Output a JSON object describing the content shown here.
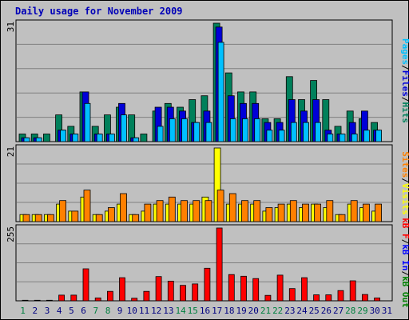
{
  "title": "Daily usage for November 2009",
  "colors": {
    "background": "#c0c0c0",
    "title": "#0000b8",
    "hits": "#00805b",
    "files": "#0000d8",
    "pages": "#00c0ff",
    "visits": "#ffff00",
    "sites": "#ff8000",
    "kb_in": "#0000ff",
    "kb_out": "#008000",
    "kb_f": "#ff0000",
    "weekend_day": "#008040",
    "weekday": "#000080"
  },
  "chart_data": [
    {
      "type": "bar",
      "title": "Daily usage for November 2009",
      "panel": "top",
      "ymax_label": "31",
      "ylim": [
        0,
        31
      ],
      "legend": [
        "Pages",
        "Files",
        "Hits"
      ],
      "legend_sep": "/",
      "categories": [
        "1",
        "2",
        "3",
        "4",
        "5",
        "6",
        "7",
        "8",
        "9",
        "10",
        "11",
        "12",
        "13",
        "14",
        "15",
        "16",
        "17",
        "18",
        "19",
        "20",
        "21",
        "22",
        "23",
        "24",
        "25",
        "26",
        "27",
        "28",
        "29",
        "30"
      ],
      "series": [
        {
          "name": "Hits",
          "values": [
            2,
            2,
            2,
            7,
            4,
            13,
            4,
            7,
            9,
            7,
            2,
            8,
            10,
            9,
            11,
            12,
            31,
            18,
            13,
            13,
            6,
            6,
            17,
            11,
            16,
            11,
            4,
            8,
            6,
            5
          ]
        },
        {
          "name": "Files",
          "values": [
            1,
            1,
            0,
            3,
            2,
            13,
            2,
            2,
            10,
            1,
            0,
            9,
            9,
            8,
            5,
            8,
            30,
            12,
            10,
            10,
            5,
            5,
            11,
            8,
            11,
            3,
            2,
            5,
            8,
            3
          ]
        },
        {
          "name": "Pages",
          "values": [
            1,
            1,
            0,
            3,
            2,
            10,
            2,
            2,
            7,
            1,
            0,
            4,
            6,
            6,
            5,
            5,
            26,
            6,
            6,
            6,
            3,
            3,
            5,
            5,
            5,
            2,
            2,
            2,
            3,
            3
          ]
        }
      ]
    },
    {
      "type": "bar",
      "panel": "middle",
      "ymax_label": "21",
      "ylim": [
        0,
        21
      ],
      "legend": [
        "Sites",
        "Visits"
      ],
      "legend_sep": "/",
      "categories": [
        "1",
        "2",
        "3",
        "4",
        "5",
        "6",
        "7",
        "8",
        "9",
        "10",
        "11",
        "12",
        "13",
        "14",
        "15",
        "16",
        "17",
        "18",
        "19",
        "20",
        "21",
        "22",
        "23",
        "24",
        "25",
        "26",
        "27",
        "28",
        "29",
        "30"
      ],
      "series": [
        {
          "name": "Visits",
          "values": [
            2,
            2,
            2,
            5,
            3,
            7,
            2,
            3,
            5,
            2,
            3,
            5,
            5,
            5,
            5,
            7,
            21,
            5,
            5,
            5,
            3,
            4,
            5,
            4,
            5,
            4,
            2,
            5,
            4,
            3
          ]
        },
        {
          "name": "Sites",
          "values": [
            2,
            2,
            2,
            6,
            3,
            9,
            2,
            4,
            8,
            2,
            5,
            6,
            7,
            6,
            6,
            6,
            9,
            8,
            6,
            6,
            4,
            5,
            6,
            5,
            5,
            6,
            2,
            6,
            5,
            5
          ]
        }
      ]
    },
    {
      "type": "bar",
      "panel": "bottom",
      "ymax_label": "255",
      "ylim": [
        0,
        255
      ],
      "legend": [
        "kB F",
        "kB In",
        "kB Out"
      ],
      "legend_sep": "/",
      "categories": [
        "1",
        "2",
        "3",
        "4",
        "5",
        "6",
        "7",
        "8",
        "9",
        "10",
        "11",
        "12",
        "13",
        "14",
        "15",
        "16",
        "17",
        "18",
        "19",
        "20",
        "21",
        "22",
        "23",
        "24",
        "25",
        "26",
        "27",
        "28",
        "29",
        "30"
      ],
      "series": [
        {
          "name": "kB F",
          "values": [
            2,
            2,
            2,
            20,
            20,
            112,
            10,
            33,
            81,
            9,
            33,
            85,
            69,
            54,
            59,
            114,
            255,
            92,
            86,
            78,
            19,
            90,
            43,
            81,
            21,
            21,
            36,
            70,
            22,
            10
          ]
        }
      ]
    }
  ],
  "x_labels": [
    "1",
    "2",
    "3",
    "4",
    "5",
    "6",
    "7",
    "8",
    "9",
    "10",
    "11",
    "12",
    "13",
    "14",
    "15",
    "16",
    "17",
    "18",
    "19",
    "20",
    "21",
    "22",
    "23",
    "24",
    "25",
    "26",
    "27",
    "28",
    "29",
    "30",
    "31"
  ],
  "weekend_days": [
    1,
    7,
    8,
    14,
    15,
    21,
    22,
    28,
    29
  ]
}
